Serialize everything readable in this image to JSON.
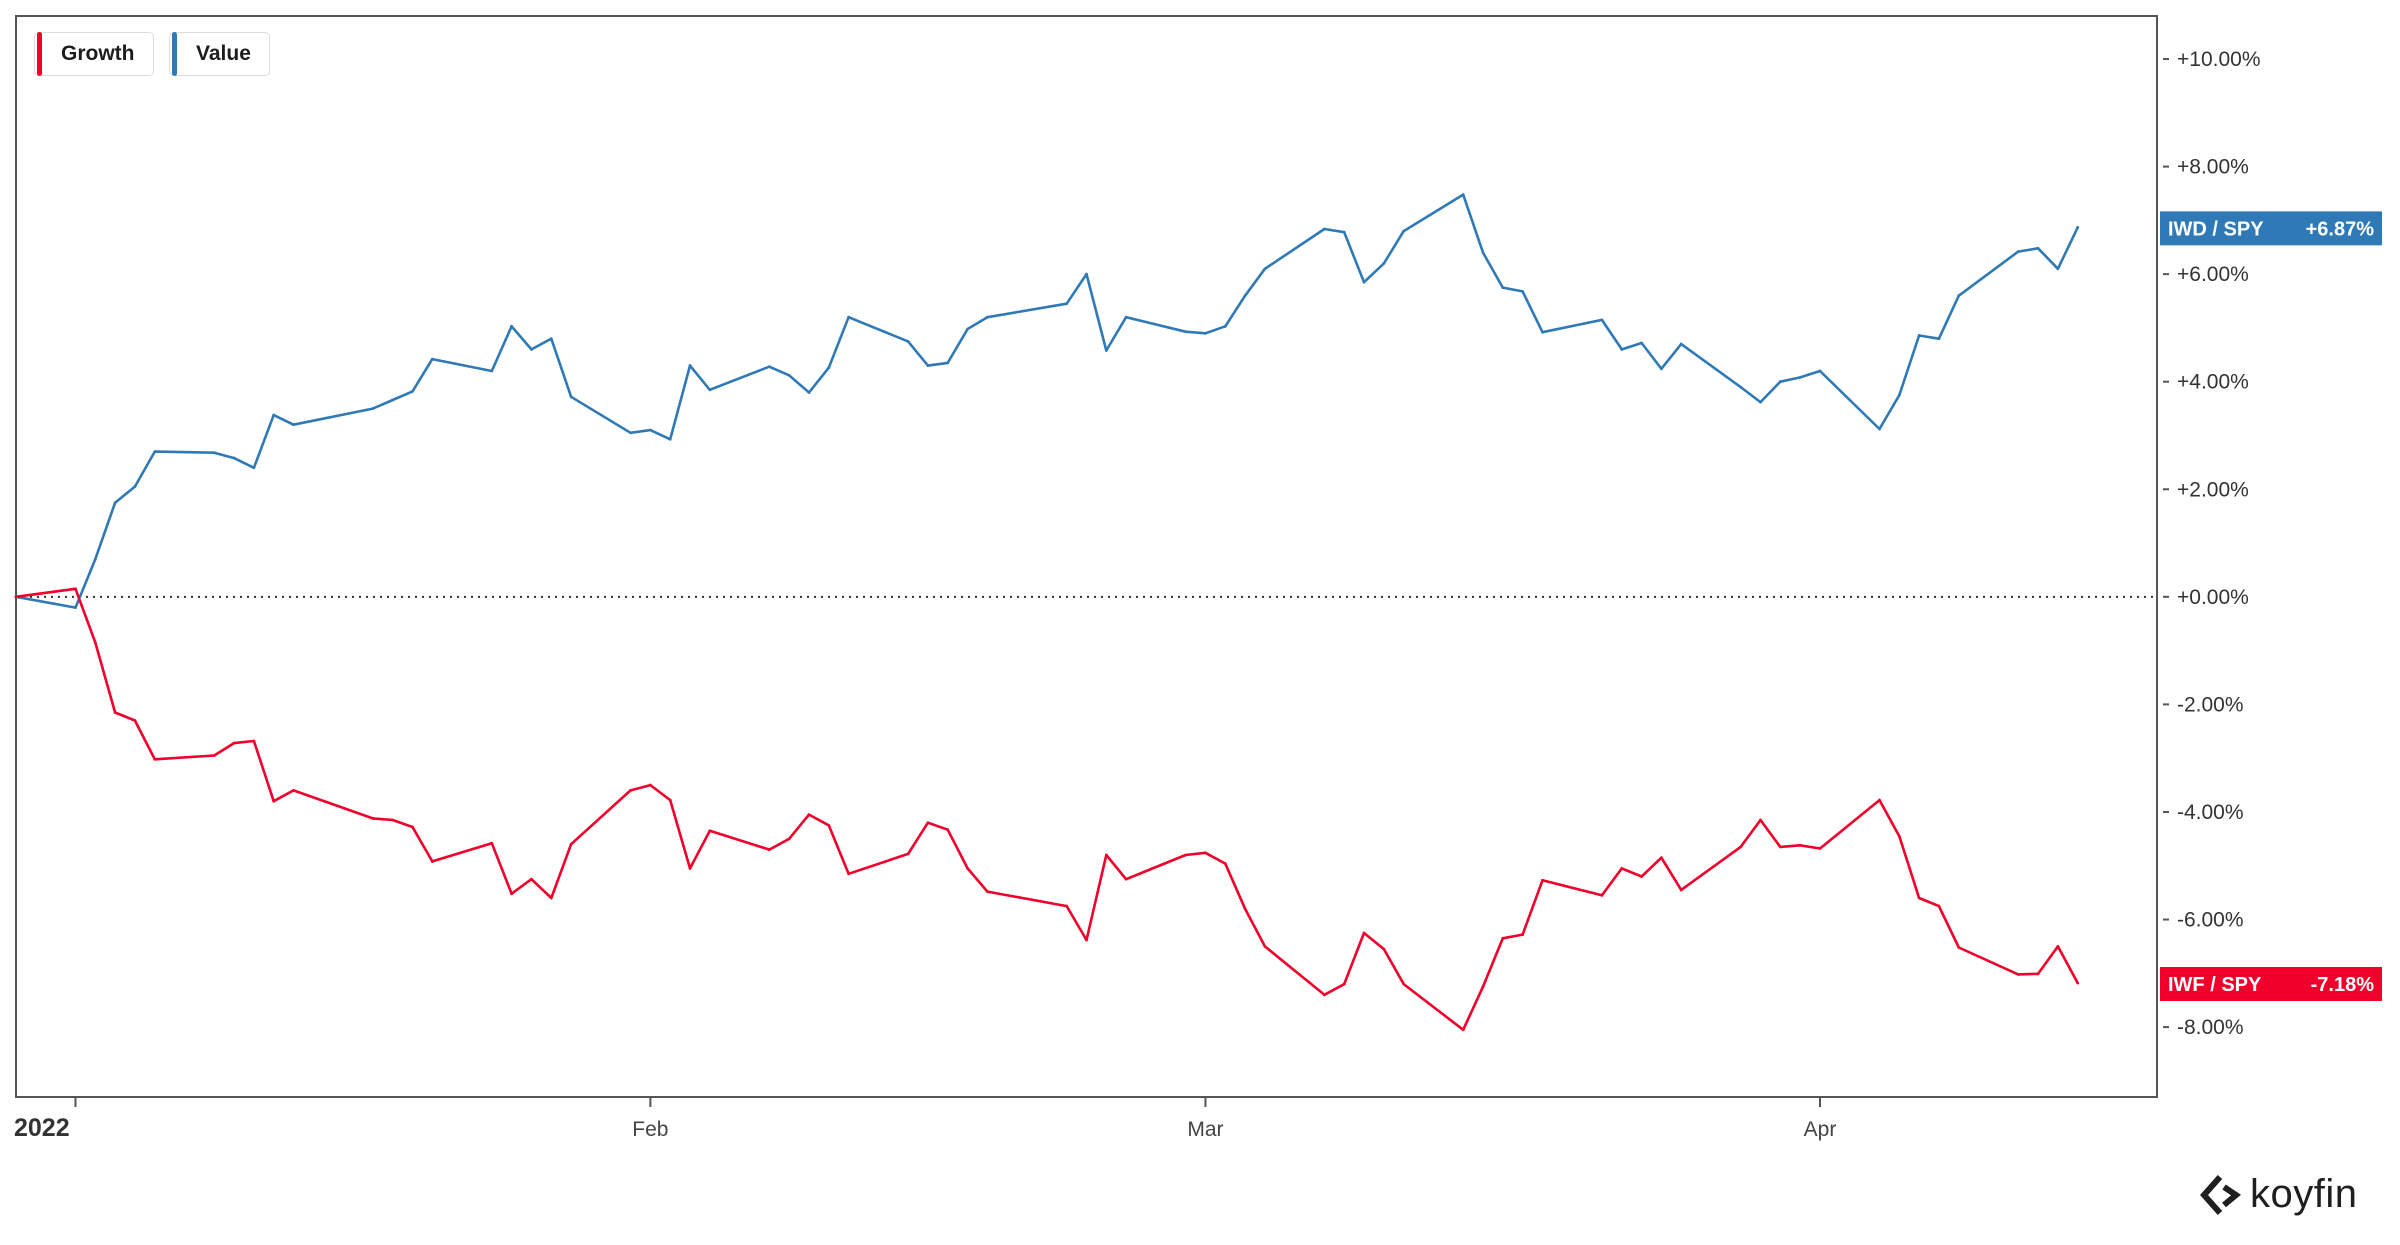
{
  "legend": {
    "items": [
      {
        "label": "Growth",
        "color": "#f0002a"
      },
      {
        "label": "Value",
        "color": "#2f7ab6"
      }
    ]
  },
  "brand": {
    "name": "koyfin",
    "icon": "koyfin-logo-icon"
  },
  "colors": {
    "growth": "#f0002a",
    "value": "#2f7ab6",
    "axis": "#555555",
    "zero_line": "#333333"
  },
  "chart_data": {
    "type": "line",
    "x_tick_labels": [
      "2022",
      "Feb",
      "Mar",
      "Apr"
    ],
    "x_tick_dates": [
      "2022-01-03",
      "2022-02-01",
      "2022-03-01",
      "2022-04-01"
    ],
    "y_tick_labels": [
      "+10.00%",
      "+8.00%",
      "+6.00%",
      "+4.00%",
      "+2.00%",
      "+0.00%",
      "-2.00%",
      "-4.00%",
      "-6.00%",
      "-8.00%"
    ],
    "y_ticks": [
      10,
      8,
      6,
      4,
      2,
      0,
      -2,
      -4,
      -6,
      -8
    ],
    "ylim": [
      -9.3,
      10.8
    ],
    "xlim": [
      "2021-12-31",
      "2022-04-18"
    ],
    "zero_line": 0,
    "grid": false,
    "legend_position": "top-left",
    "x": [
      "2021-12-31",
      "2022-01-03",
      "2022-01-04",
      "2022-01-05",
      "2022-01-06",
      "2022-01-07",
      "2022-01-10",
      "2022-01-11",
      "2022-01-12",
      "2022-01-13",
      "2022-01-14",
      "2022-01-18",
      "2022-01-19",
      "2022-01-20",
      "2022-01-21",
      "2022-01-24",
      "2022-01-25",
      "2022-01-26",
      "2022-01-27",
      "2022-01-28",
      "2022-01-31",
      "2022-02-01",
      "2022-02-02",
      "2022-02-03",
      "2022-02-04",
      "2022-02-07",
      "2022-02-08",
      "2022-02-09",
      "2022-02-10",
      "2022-02-11",
      "2022-02-14",
      "2022-02-15",
      "2022-02-16",
      "2022-02-17",
      "2022-02-18",
      "2022-02-22",
      "2022-02-23",
      "2022-02-24",
      "2022-02-25",
      "2022-02-28",
      "2022-03-01",
      "2022-03-02",
      "2022-03-03",
      "2022-03-04",
      "2022-03-07",
      "2022-03-08",
      "2022-03-09",
      "2022-03-10",
      "2022-03-11",
      "2022-03-14",
      "2022-03-15",
      "2022-03-16",
      "2022-03-17",
      "2022-03-18",
      "2022-03-21",
      "2022-03-22",
      "2022-03-23",
      "2022-03-24",
      "2022-03-25",
      "2022-03-28",
      "2022-03-29",
      "2022-03-30",
      "2022-03-31",
      "2022-04-01",
      "2022-04-04",
      "2022-04-05",
      "2022-04-06",
      "2022-04-07",
      "2022-04-08",
      "2022-04-11",
      "2022-04-12",
      "2022-04-13",
      "2022-04-14"
    ],
    "series": [
      {
        "name": "IWD / SPY",
        "legend": "Value",
        "color": "#2f7ab6",
        "last_label": "+6.87%",
        "values": [
          0.0,
          -0.2,
          0.7,
          1.75,
          2.05,
          2.7,
          2.68,
          2.58,
          2.4,
          3.38,
          3.2,
          3.5,
          3.66,
          3.82,
          4.42,
          4.2,
          5.03,
          4.6,
          4.8,
          3.72,
          3.05,
          3.1,
          2.93,
          4.3,
          3.85,
          4.28,
          4.12,
          3.8,
          4.26,
          5.2,
          4.75,
          4.3,
          4.35,
          4.98,
          5.2,
          5.45,
          6.0,
          4.58,
          5.2,
          4.93,
          4.9,
          5.03,
          5.6,
          6.1,
          6.84,
          6.78,
          5.85,
          6.2,
          6.8,
          7.48,
          6.4,
          5.75,
          5.68,
          4.92,
          5.15,
          4.6,
          4.72,
          4.24,
          4.7,
          3.9,
          3.62,
          4.0,
          4.08,
          4.2,
          3.12,
          3.75,
          4.86,
          4.8,
          5.6,
          6.42,
          6.48,
          6.1,
          6.87
        ]
      },
      {
        "name": "IWF / SPY",
        "legend": "Growth",
        "color": "#f0002a",
        "last_label": "-7.18%",
        "values": [
          0.0,
          0.15,
          -0.85,
          -2.15,
          -2.3,
          -3.02,
          -2.95,
          -2.72,
          -2.68,
          -3.8,
          -3.6,
          -4.12,
          -4.15,
          -4.28,
          -4.92,
          -4.58,
          -5.52,
          -5.25,
          -5.6,
          -4.6,
          -3.6,
          -3.5,
          -3.78,
          -5.05,
          -4.35,
          -4.7,
          -4.5,
          -4.05,
          -4.25,
          -5.15,
          -4.78,
          -4.2,
          -4.33,
          -5.05,
          -5.48,
          -5.75,
          -6.38,
          -4.8,
          -5.25,
          -4.8,
          -4.76,
          -4.96,
          -5.8,
          -6.5,
          -7.4,
          -7.2,
          -6.25,
          -6.55,
          -7.2,
          -8.05,
          -7.25,
          -6.35,
          -6.28,
          -5.27,
          -5.55,
          -5.05,
          -5.2,
          -4.85,
          -5.45,
          -4.65,
          -4.15,
          -4.65,
          -4.62,
          -4.68,
          -3.78,
          -4.45,
          -5.6,
          -5.75,
          -6.52,
          -7.02,
          -7.01,
          -6.5,
          -7.18
        ]
      }
    ]
  }
}
